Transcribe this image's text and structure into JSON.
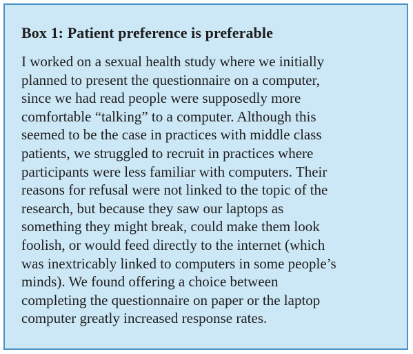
{
  "box": {
    "title": "Box 1: Patient preference is preferable",
    "body_lines": [
      "I worked on a sexual health study where we initially",
      "planned to present the questionnaire on a computer,",
      "since we had read people were supposedly more",
      "comfortable “talking” to a computer. Although this",
      "seemed to be the case in practices with middle class",
      "patients, we struggled to recruit in practices where",
      "participants were less familiar with computers. Their",
      "reasons for refusal were not linked to the topic of the",
      "research, but because they saw our laptops as",
      "something they might break, could make them look",
      "foolish, or would feed directly to the internet (which",
      "was inextricably linked to computers in some people’s",
      "minds). We found offering a choice between",
      "completing the questionnaire on paper or the laptop",
      "computer greatly increased response rates."
    ],
    "colors": {
      "background": "#cce7f6",
      "border": "#4a90c4",
      "text": "#1e1e1e"
    }
  }
}
